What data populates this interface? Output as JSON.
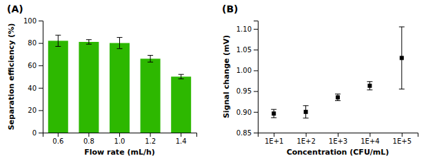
{
  "chart_data": [
    {
      "type": "bar",
      "title": "(A)",
      "categories": [
        "0.6",
        "0.8",
        "1.0",
        "1.2",
        "1.4"
      ],
      "values": [
        82,
        81,
        80,
        66,
        50
      ],
      "errors": [
        5,
        2,
        5,
        3,
        2
      ],
      "color": "#2db800",
      "x_label": "Flow rate (mL/h)",
      "y_label": "Separation efficiency (%)",
      "ylim": [
        0,
        100
      ],
      "yticks": [
        0,
        20,
        40,
        60,
        80,
        100
      ]
    },
    {
      "type": "scatter",
      "title": "(B)",
      "categories": [
        "1E+1",
        "1E+2",
        "1E+3",
        "1E+4",
        "1E+5"
      ],
      "values": [
        0.896,
        0.9,
        0.935,
        0.963,
        1.03
      ],
      "errors": [
        0.01,
        0.015,
        0.008,
        0.01,
        0.075
      ],
      "marker": "square",
      "color": "black",
      "x_label": "Concentration (CFU/mL)",
      "y_label": "Signal change (mV)",
      "ylim": [
        0.85,
        1.12
      ],
      "yticks": [
        0.85,
        {
          "value": 0.9,
          "label": "0.90"
        },
        0.95,
        {
          "value": 1.0,
          "label": "1.00"
        },
        1.05,
        {
          "value": 1.1,
          "label": "1.10"
        }
      ]
    }
  ]
}
